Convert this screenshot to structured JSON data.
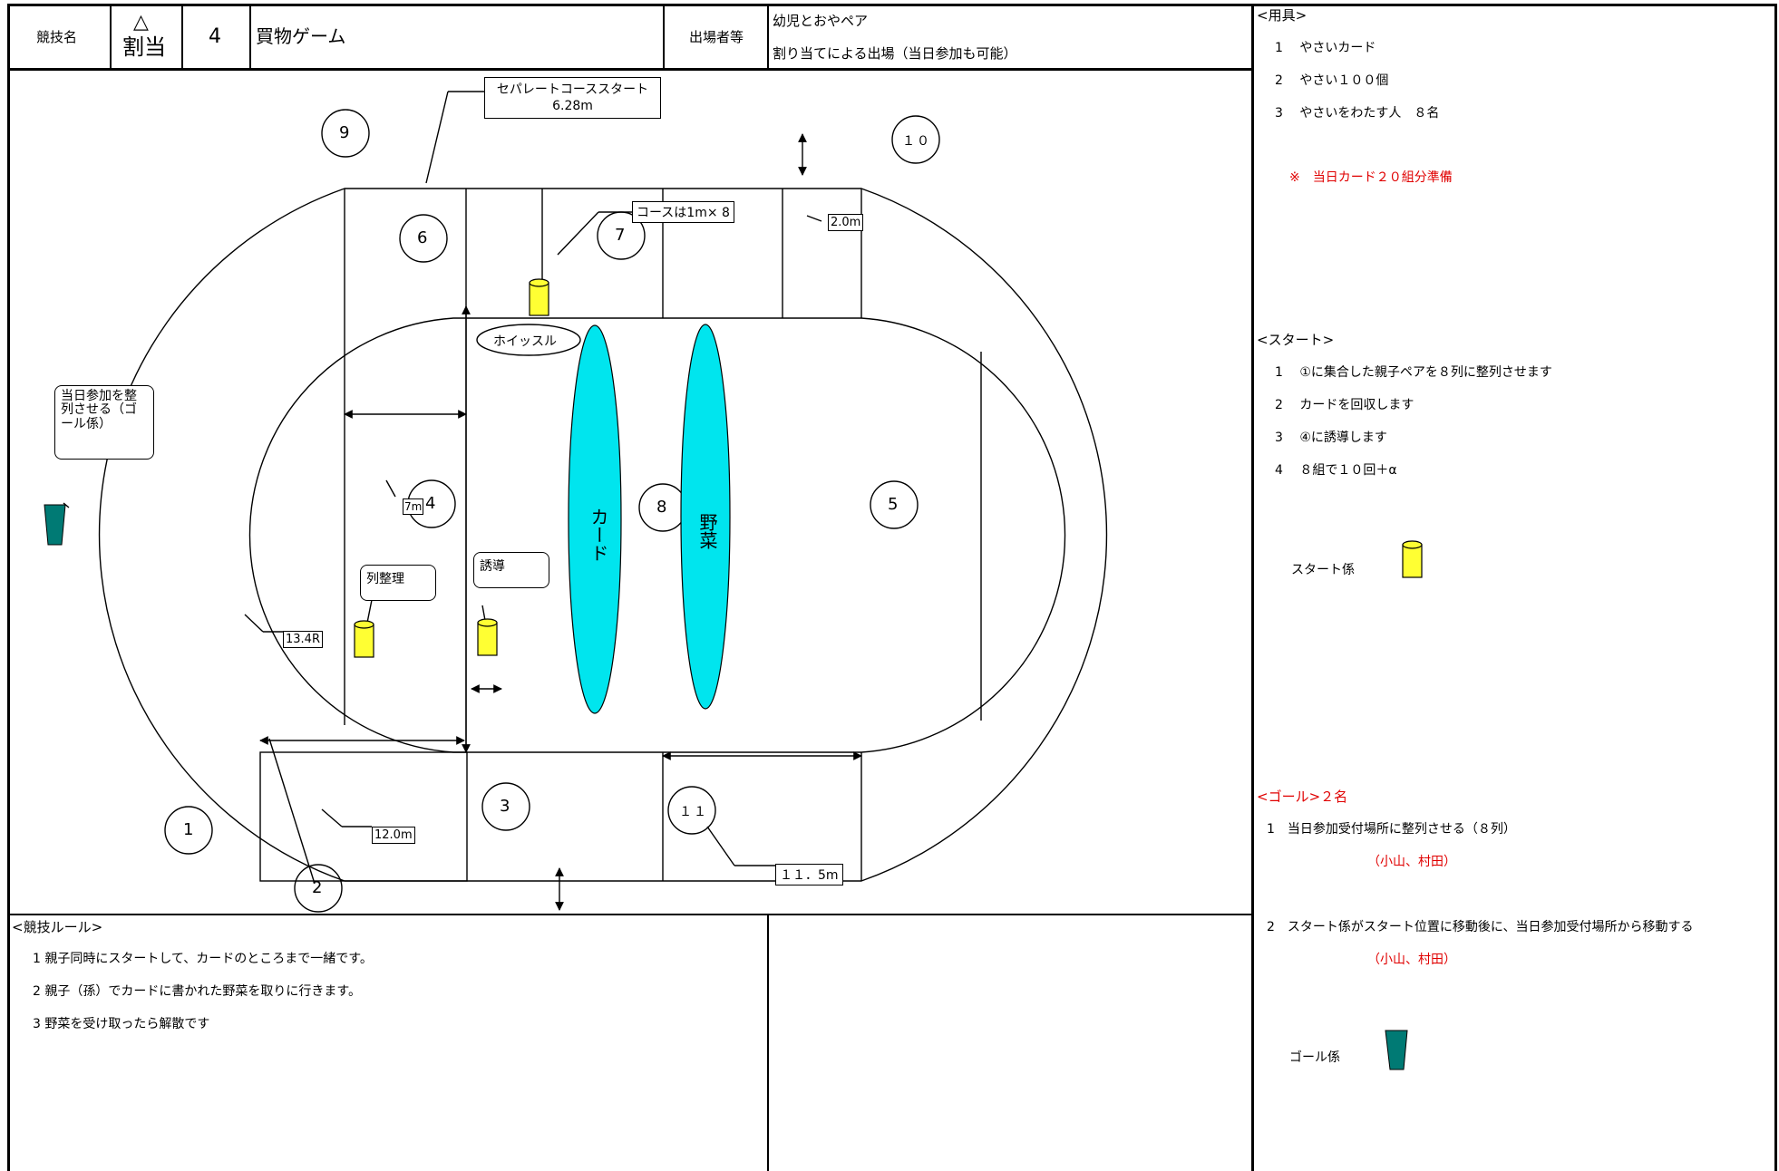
{
  "header": {
    "kyogi_label": "競技名",
    "symbol": "△",
    "wariate": "割当",
    "number": "4",
    "title": "買物ゲーム",
    "participants_label": "出場者等",
    "participants_line1": "幼児とおやペア",
    "participants_line2": "割り当てによる出場（当日参加も可能）"
  },
  "diagram": {
    "separate_label_line1": "セパレートコーススタート",
    "separate_label_line2": "6.28m",
    "course_label": "コースは1m× 8",
    "dim_2m": "2.0m",
    "dim_7m": "7m",
    "dim_13r": "13.4R",
    "dim_12m": "12.0m",
    "dim_115m": "１１．5m",
    "whistle": "ホイッスル",
    "card_lane": "カード",
    "yasai_lane": "野菜",
    "callout_toujitsu": "当日参加を整列させる（ゴール係）",
    "callout_retsu": "列整理",
    "callout_yudou": "誘導",
    "positions": [
      "1",
      "2",
      "3",
      "4",
      "5",
      "6",
      "7",
      "8",
      "9",
      "１０",
      "１１"
    ]
  },
  "rules": {
    "heading": "<競技ルール>",
    "items": [
      "1 親子同時にスタートして、カードのところまで一緒です。",
      "2 親子（孫）でカードに書かれた野菜を取りに行きます。",
      "3 野菜を受け取ったら解散です"
    ]
  },
  "equipment": {
    "heading": "<用具>",
    "items": [
      "1　 やさいカード",
      "2　 やさい１００個",
      "3　 やさいをわたす人　８名"
    ],
    "note": "※　当日カード２０組分準備"
  },
  "start": {
    "heading": "<スタート>",
    "items": [
      "1　 ①に集合した親子ペアを８列に整列させます",
      "2　 カードを回収します",
      "3　 ④に誘導します",
      "4　 ８組で１０回＋α"
    ],
    "legend_label": "スタート係"
  },
  "goal": {
    "heading": "<ゴール>２名",
    "item1": "1　当日参加受付場所に整列させる（８列）",
    "item1_names": "（小山、村田）",
    "item2": "2　スタート係がスタート位置に移動後に、当日参加受付場所から移動する",
    "item2_names": "（小山、村田）",
    "legend_label": "ゴール係"
  },
  "colors": {
    "cyan": "#00e5ee",
    "yellow": "#ffff33",
    "teal": "#007a74",
    "red": "#e00000"
  }
}
